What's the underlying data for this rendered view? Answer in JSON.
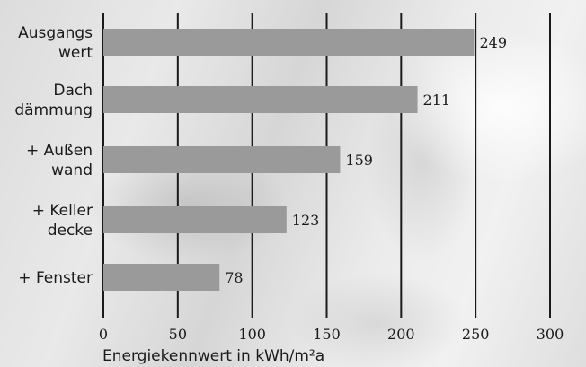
{
  "chart_data": {
    "type": "bar",
    "orientation": "horizontal",
    "categories": [
      [
        "Ausgangs",
        "wert"
      ],
      [
        "Dach",
        "dämmung"
      ],
      [
        "+ Außen",
        "wand"
      ],
      [
        "+ Keller",
        "decke"
      ],
      [
        "+ Fenster"
      ]
    ],
    "values": [
      249,
      211,
      159,
      123,
      78
    ],
    "value_labels": [
      "249",
      "211",
      "159",
      "123",
      "78"
    ],
    "xlabel": "Energiekennwert in kWh/m²a",
    "xlim": [
      0,
      300
    ],
    "xticks": [
      0,
      50,
      100,
      150,
      200,
      250,
      300
    ],
    "xtick_labels": [
      "0",
      "50",
      "100",
      "150",
      "200",
      "250",
      "300"
    ],
    "grid": "vertical",
    "colors": {
      "bar": "#9a9a9a",
      "gridline": "#1a1a1a",
      "text": "#1a1a1a"
    }
  }
}
